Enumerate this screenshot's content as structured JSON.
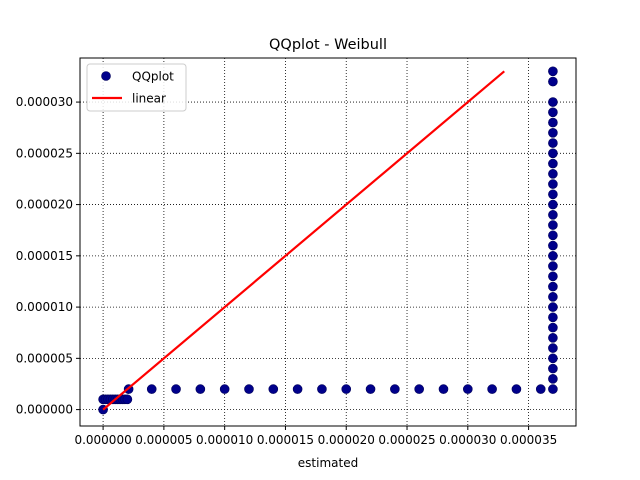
{
  "chart_data": {
    "type": "scatter",
    "title": "QQplot - Weibull",
    "xlabel": "estimated",
    "ylabel": "",
    "xlim": [
      -1.9e-06,
      3.89e-05
    ],
    "ylim": [
      -1.6e-06,
      3.43e-05
    ],
    "grid": true,
    "grid_style": "dotted",
    "legend_position": "top-left",
    "x_ticks": [
      0,
      5e-06,
      1e-05,
      1.5e-05,
      2e-05,
      2.5e-05,
      3e-05,
      3.5e-05
    ],
    "x_tick_labels": [
      "0.000000",
      "0.000005",
      "0.000010",
      "0.000015",
      "0.000020",
      "0.000025",
      "0.000030",
      "0.000035"
    ],
    "y_ticks": [
      0,
      5e-06,
      1e-05,
      1.5e-05,
      2e-05,
      2.5e-05,
      3e-05
    ],
    "y_tick_labels": [
      "0.000000",
      "0.000005",
      "0.000010",
      "0.000015",
      "0.000020",
      "0.000025",
      "0.000030"
    ],
    "series": [
      {
        "name": "QQplot",
        "kind": "scatter",
        "color": "#00008b",
        "points": [
          [
            0,
            0
          ],
          [
            0,
            1e-06
          ],
          [
            2e-07,
            1e-06
          ],
          [
            4e-07,
            1e-06
          ],
          [
            6e-07,
            1e-06
          ],
          [
            8e-07,
            1e-06
          ],
          [
            1e-06,
            1e-06
          ],
          [
            1.2e-06,
            1e-06
          ],
          [
            1.4e-06,
            1e-06
          ],
          [
            1.6e-06,
            1e-06
          ],
          [
            1.8e-06,
            1e-06
          ],
          [
            2e-06,
            1e-06
          ],
          [
            2.1e-06,
            2e-06
          ],
          [
            4e-06,
            2e-06
          ],
          [
            6e-06,
            2e-06
          ],
          [
            8e-06,
            2e-06
          ],
          [
            1e-05,
            2e-06
          ],
          [
            1.2e-05,
            2e-06
          ],
          [
            1.4e-05,
            2e-06
          ],
          [
            1.6e-05,
            2e-06
          ],
          [
            1.8e-05,
            2e-06
          ],
          [
            2e-05,
            2e-06
          ],
          [
            2.2e-05,
            2e-06
          ],
          [
            2.4e-05,
            2e-06
          ],
          [
            2.6e-05,
            2e-06
          ],
          [
            2.8e-05,
            2e-06
          ],
          [
            3e-05,
            2e-06
          ],
          [
            3.2e-05,
            2e-06
          ],
          [
            3.4e-05,
            2e-06
          ],
          [
            3.6e-05,
            2e-06
          ],
          [
            3.7e-05,
            2e-06
          ],
          [
            3.7e-05,
            3e-06
          ],
          [
            3.7e-05,
            4e-06
          ],
          [
            3.7e-05,
            5e-06
          ],
          [
            3.7e-05,
            6e-06
          ],
          [
            3.7e-05,
            7e-06
          ],
          [
            3.7e-05,
            8e-06
          ],
          [
            3.7e-05,
            9e-06
          ],
          [
            3.7e-05,
            1e-05
          ],
          [
            3.7e-05,
            1.1e-05
          ],
          [
            3.7e-05,
            1.2e-05
          ],
          [
            3.7e-05,
            1.3e-05
          ],
          [
            3.7e-05,
            1.4e-05
          ],
          [
            3.7e-05,
            1.5e-05
          ],
          [
            3.7e-05,
            1.6e-05
          ],
          [
            3.7e-05,
            1.7e-05
          ],
          [
            3.7e-05,
            1.8e-05
          ],
          [
            3.7e-05,
            1.9e-05
          ],
          [
            3.7e-05,
            2e-05
          ],
          [
            3.7e-05,
            2.1e-05
          ],
          [
            3.7e-05,
            2.2e-05
          ],
          [
            3.7e-05,
            2.3e-05
          ],
          [
            3.7e-05,
            2.4e-05
          ],
          [
            3.7e-05,
            2.5e-05
          ],
          [
            3.7e-05,
            2.6e-05
          ],
          [
            3.7e-05,
            2.7e-05
          ],
          [
            3.7e-05,
            2.8e-05
          ],
          [
            3.7e-05,
            2.9e-05
          ],
          [
            3.7e-05,
            3e-05
          ],
          [
            3.7e-05,
            3.2e-05
          ],
          [
            3.7e-05,
            3.3e-05
          ]
        ]
      },
      {
        "name": "linear",
        "kind": "line",
        "color": "#ff0000",
        "points": [
          [
            0,
            0
          ],
          [
            3.3e-05,
            3.3e-05
          ]
        ]
      }
    ]
  }
}
